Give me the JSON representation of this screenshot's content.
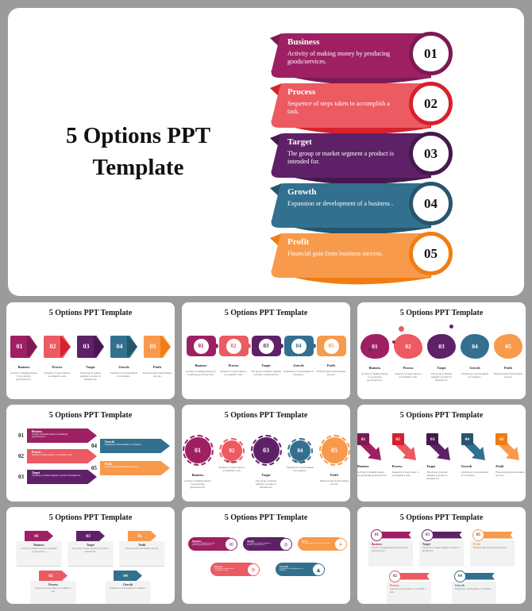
{
  "hero": {
    "title_line1": "5 Options PPT",
    "title_line2": "Template"
  },
  "slide_title": "5 Options PPT Template",
  "options": [
    {
      "num": "01",
      "label": "Business",
      "desc": "Activity of making money by producing goods/services.",
      "fill": "#9e2063",
      "dark": "#7c1a51",
      "icon_name": "briefcase-icon",
      "icon_glyph": "✉"
    },
    {
      "num": "02",
      "label": "Process",
      "desc": "Sequence of steps taken to accomplish a task.",
      "fill": "#ec5a62",
      "dark": "#d6212e",
      "icon_name": "gear-icon",
      "icon_glyph": "⚙"
    },
    {
      "num": "03",
      "label": "Target",
      "desc": "The group or market segment a product is intended for.",
      "fill": "#5e2167",
      "dark": "#46184f",
      "icon_name": "target-icon",
      "icon_glyph": "◎"
    },
    {
      "num": "04",
      "label": "Growth",
      "desc": "Expansion or development of a business .",
      "fill": "#33708f",
      "dark": "#26556e",
      "icon_name": "chart-icon",
      "icon_glyph": "▲"
    },
    {
      "num": "05",
      "label": "Profit",
      "desc": "Financial gain from business success.",
      "fill": "#f89a4b",
      "dark": "#ef7d12",
      "icon_name": "trophy-icon",
      "icon_glyph": "★"
    }
  ],
  "thumbnails": {
    "items": [
      {
        "layout": "chevron-arrows"
      },
      {
        "layout": "puzzle-chain"
      },
      {
        "layout": "blobs"
      },
      {
        "layout": "arrow-banners"
      },
      {
        "layout": "gears"
      },
      {
        "layout": "diagonal-arrows"
      },
      {
        "layout": "pentagon-cards"
      },
      {
        "layout": "icon-bars"
      },
      {
        "layout": "ribbon-cards"
      }
    ]
  },
  "colors": {
    "page_bg": "#9b9b9b",
    "card_bg": "#ffffff",
    "mini_card_bg": "#f3f3f3"
  }
}
